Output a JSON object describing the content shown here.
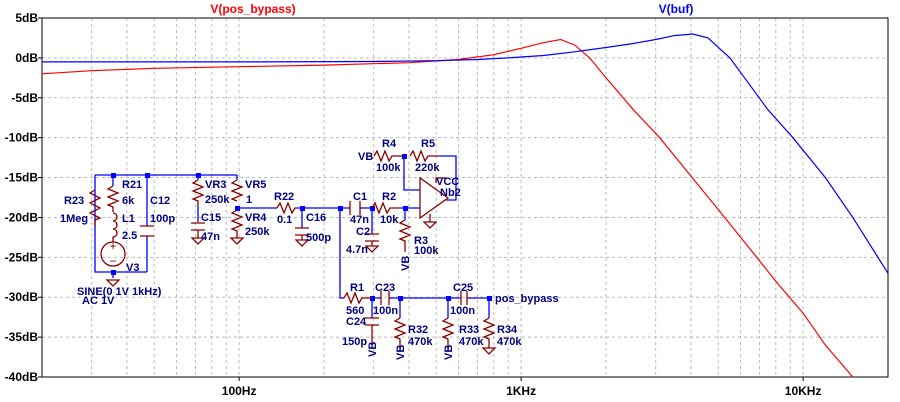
{
  "chart_data": {
    "type": "line",
    "title": "",
    "xscale": "log",
    "xlim": [
      20,
      20000
    ],
    "ylim": [
      -40,
      5
    ],
    "x_ticks": [
      {
        "value": 100,
        "label": "100Hz"
      },
      {
        "value": 1000,
        "label": "1KHz"
      },
      {
        "value": 10000,
        "label": "10KHz"
      }
    ],
    "y_ticks": [
      {
        "value": 5,
        "label": "5dB"
      },
      {
        "value": 0,
        "label": "0dB"
      },
      {
        "value": -5,
        "label": "-5dB"
      },
      {
        "value": -10,
        "label": "-10dB"
      },
      {
        "value": -15,
        "label": "-15dB"
      },
      {
        "value": -20,
        "label": "-20dB"
      },
      {
        "value": -25,
        "label": "-25dB"
      },
      {
        "value": -30,
        "label": "-30dB"
      },
      {
        "value": -35,
        "label": "-35dB"
      },
      {
        "value": -40,
        "label": "-40dB"
      }
    ],
    "grid": true,
    "series": [
      {
        "name": "V(pos_bypass)",
        "color": "#ff0000",
        "x": [
          20,
          30,
          50,
          100,
          200,
          400,
          600,
          800,
          1000,
          1200,
          1380,
          1550,
          1750,
          2000,
          2500,
          3100,
          4000,
          5000,
          6500,
          8000,
          10000,
          12000,
          15000
        ],
        "y": [
          -2.0,
          -1.6,
          -1.3,
          -1.1,
          -0.9,
          -0.6,
          -0.2,
          0.4,
          1.2,
          1.9,
          2.3,
          1.6,
          0,
          -2.5,
          -6.5,
          -10,
          -14.8,
          -19,
          -24,
          -28,
          -32,
          -36,
          -40
        ]
      },
      {
        "name": "V(buf)",
        "color": "#0000ff",
        "x": [
          20,
          100,
          300,
          500,
          700,
          900,
          1200,
          1500,
          2000,
          2500,
          3000,
          3500,
          4060,
          4600,
          5500,
          6500,
          7500,
          9200,
          12000,
          15000,
          20000
        ],
        "y": [
          -0.5,
          -0.5,
          -0.45,
          -0.35,
          -0.2,
          0,
          0.3,
          0.7,
          1.3,
          1.8,
          2.3,
          2.8,
          3.0,
          2.5,
          0,
          -3.5,
          -6.5,
          -10,
          -15,
          -20,
          -27
        ]
      }
    ]
  },
  "schematic": {
    "labels": {
      "r23": "R23",
      "r23v": "1Meg",
      "r21": "R21",
      "r21v": "6k",
      "l1": "L1",
      "l1v": "2.5",
      "c12": "C12",
      "c12v": "100p",
      "v3": "V3",
      "sine": "SINE(0 1V 1kHz)",
      "ac": "AC 1V",
      "vr3": "VR3",
      "vr3v": "250k",
      "c15": "C15",
      "c15v": "47n",
      "vr5": "VR5",
      "vr5v": "1",
      "vr4": "VR4",
      "vr4v": "250k",
      "r22": "R22",
      "r22v": "0.1",
      "c16": "C16",
      "c16v": "500p",
      "c1": "C1",
      "c1v": "47n",
      "c2": "C2",
      "c2v": "4.7n",
      "r2": "R2",
      "r2v": "10k",
      "r3": "R3",
      "r3v": "100k",
      "r4": "R4",
      "r4v": "100k",
      "r5": "R5",
      "r5v": "220k",
      "vb": "VB",
      "vcc": "VCC",
      "nb2": "Nb2",
      "r1": "R1",
      "r1v": "560",
      "c23": "C23",
      "c23v": "100n",
      "c24": "C24",
      "c24v": "150p",
      "c25": "C25",
      "c25v": "100n",
      "r32": "R32",
      "r32v": "470k",
      "r33": "R33",
      "r33v": "470k",
      "r34": "R34",
      "r34v": "470k",
      "net": "pos_bypass"
    }
  }
}
